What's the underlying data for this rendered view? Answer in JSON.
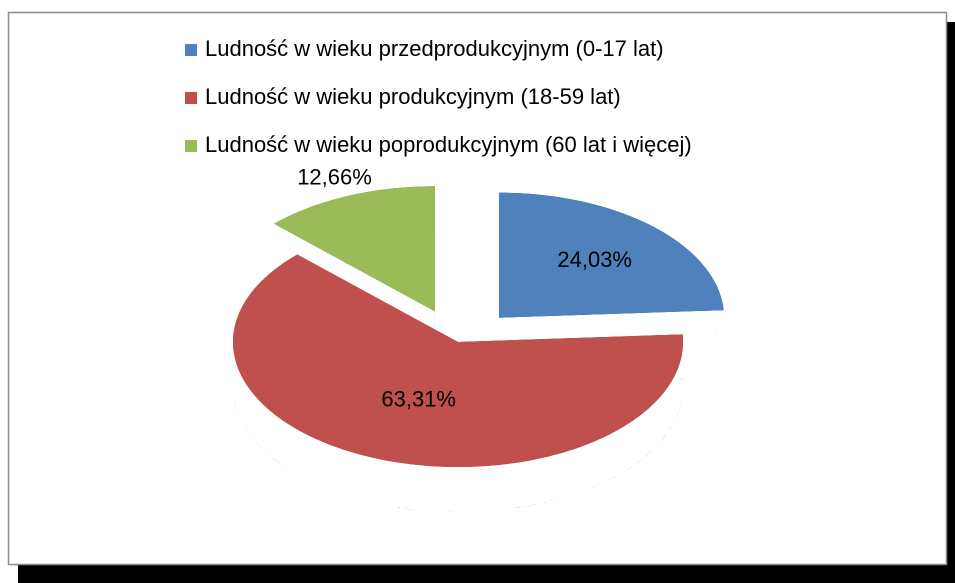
{
  "chart_data": {
    "type": "pie",
    "categories": [
      "Ludność w wieku przedprodukcyjnym (0-17 lat)",
      "Ludność w wieku produkcyjnym (18-59 lat)",
      "Ludność w wieku poprodukcyjnym (60 lat i więcej)"
    ],
    "values": [
      24.03,
      63.31,
      12.66
    ],
    "value_labels": [
      "24,03%",
      "63,31%",
      "12,66%"
    ],
    "colors": [
      "#4f81bd",
      "#c0504d",
      "#9bbb59"
    ],
    "legend": "top"
  }
}
